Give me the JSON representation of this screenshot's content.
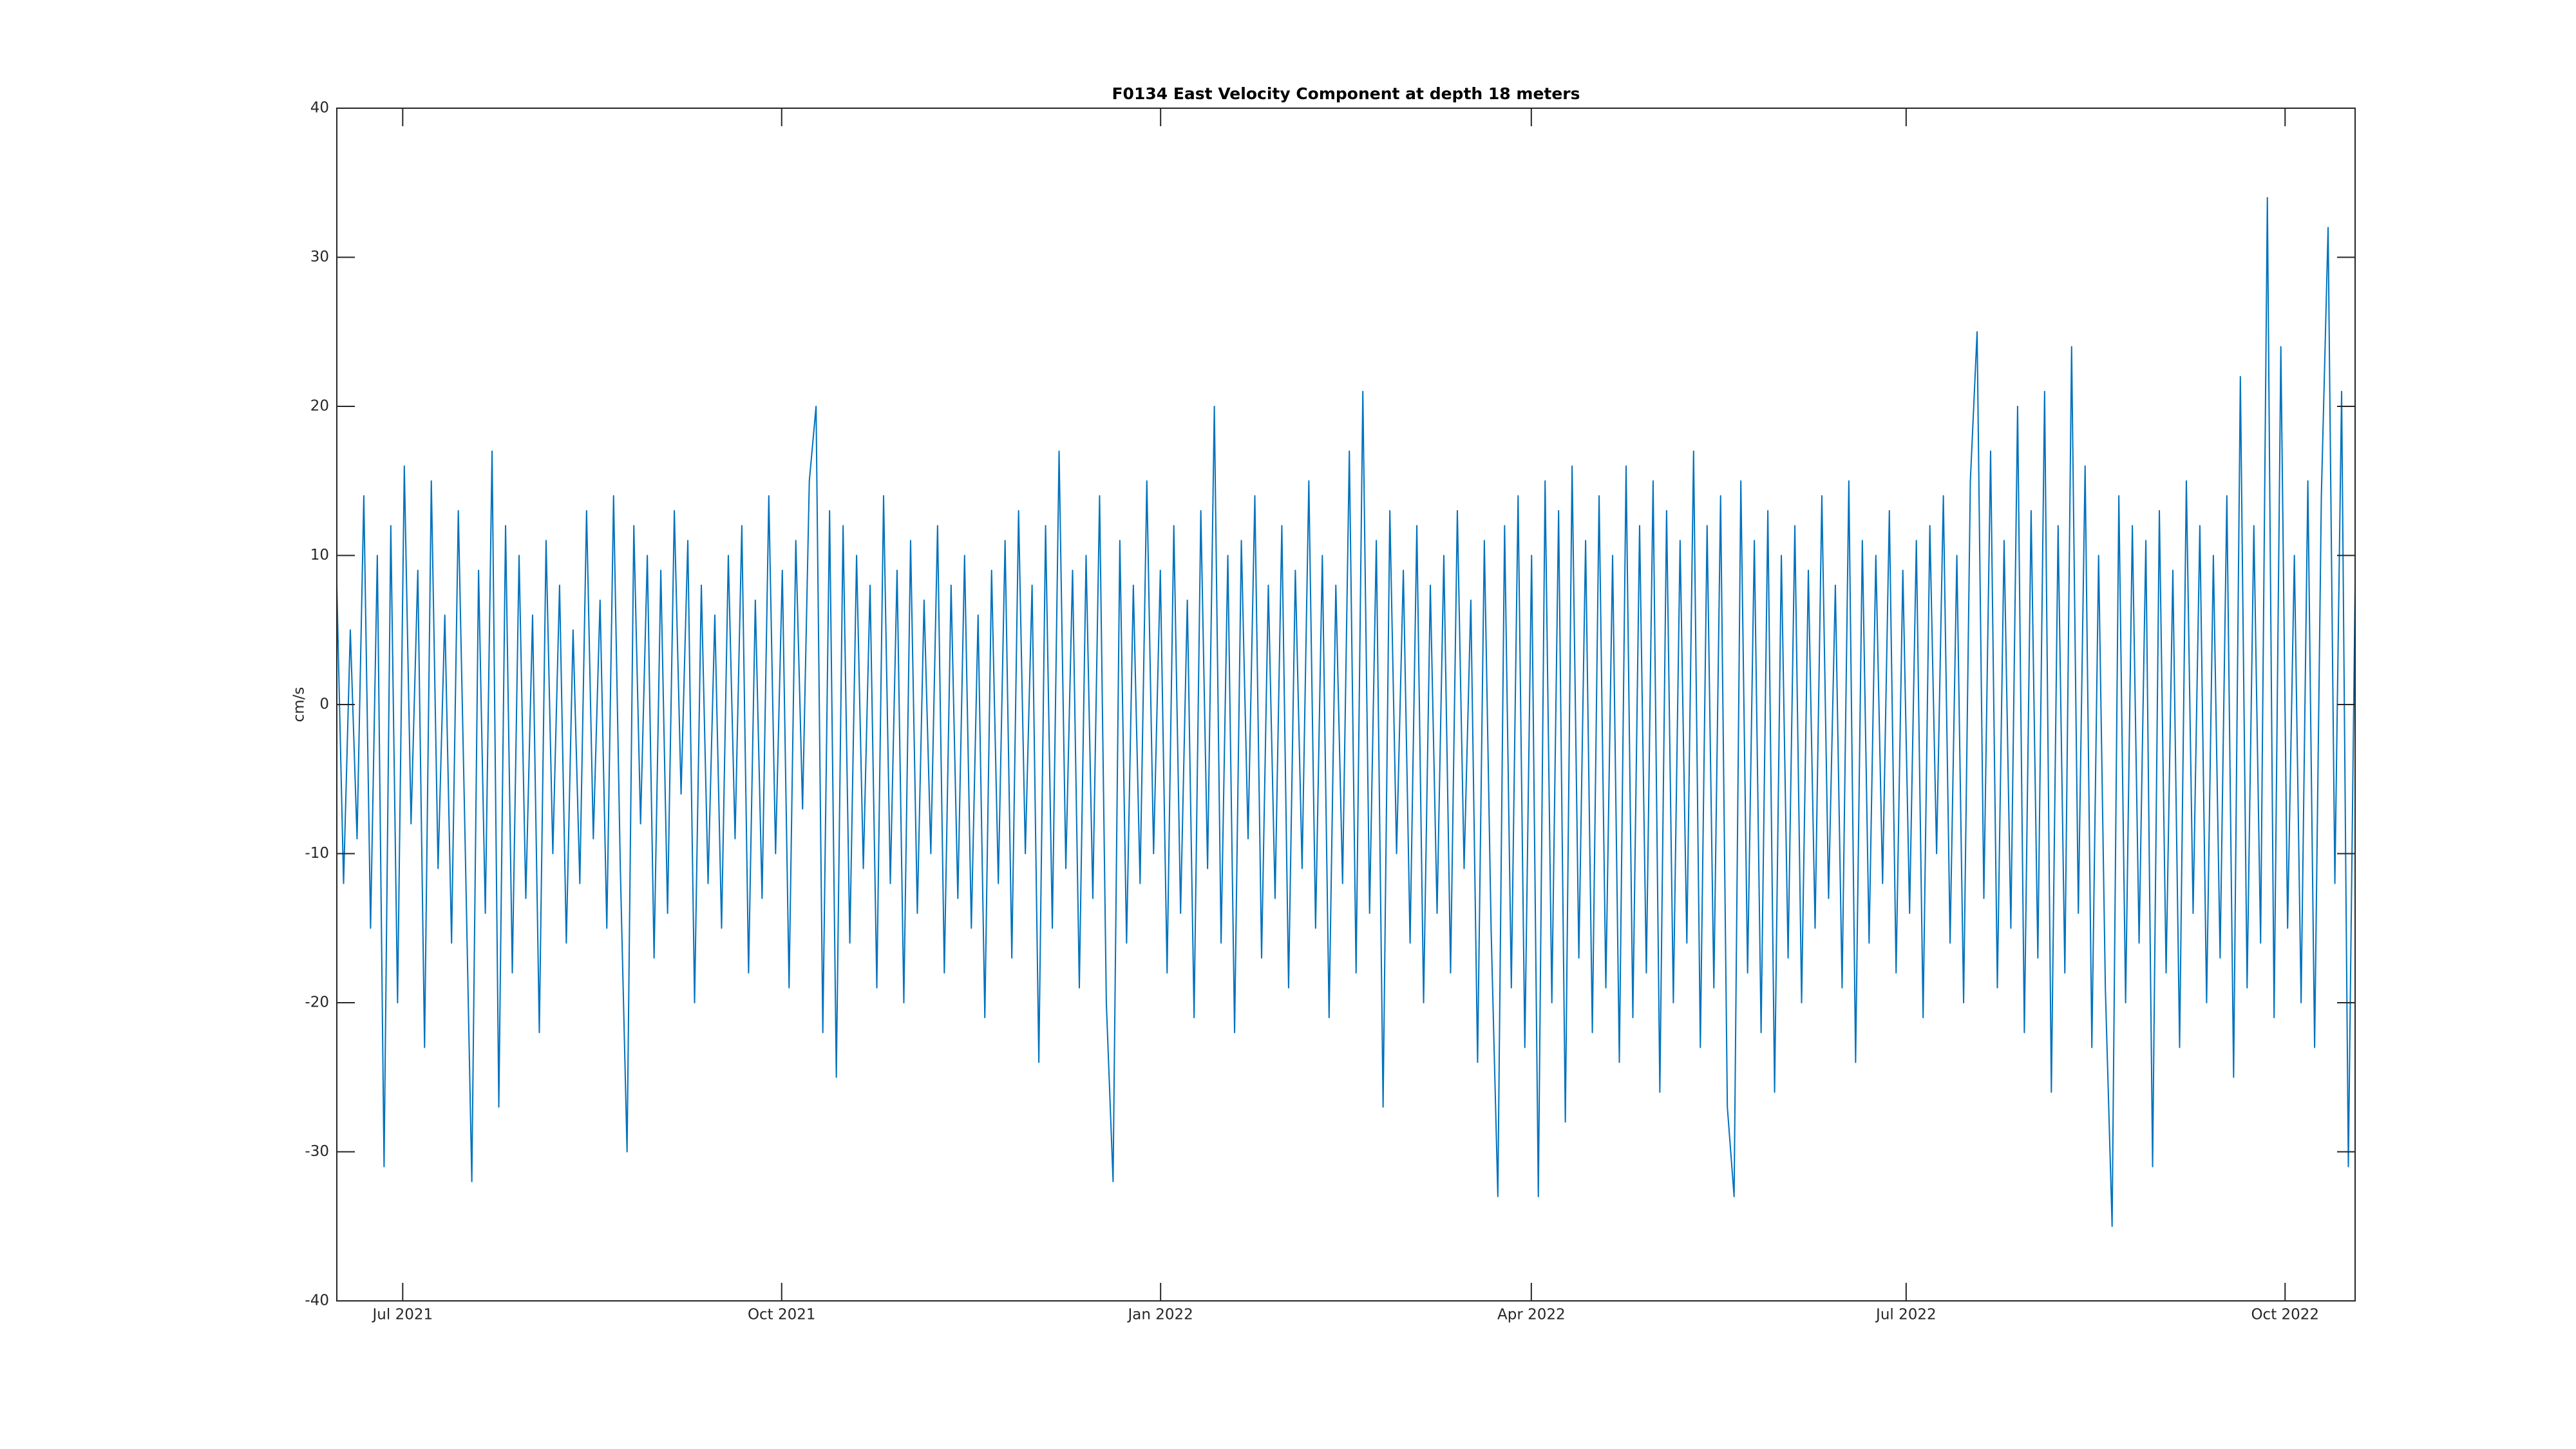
{
  "chart_data": {
    "type": "line",
    "title": "F0134 East Velocity Component at depth 18 meters",
    "y_label": "cm/s",
    "color": "#0072bd",
    "xlim": [
      "2021-06-15",
      "2022-10-18"
    ],
    "xticks": [
      {
        "value": "2021-07-01",
        "label": "Jul 2021"
      },
      {
        "value": "2021-10-01",
        "label": "Oct 2021"
      },
      {
        "value": "2022-01-01",
        "label": "Jan 2022"
      },
      {
        "value": "2022-04-01",
        "label": "Apr 2022"
      },
      {
        "value": "2022-07-01",
        "label": "Jul 2022"
      },
      {
        "value": "2022-10-01",
        "label": "Oct 2022"
      }
    ],
    "ylim": [
      -40,
      40
    ],
    "yticks": [
      -40,
      -30,
      -20,
      -10,
      0,
      10,
      20,
      30,
      40
    ],
    "grid": false,
    "values": [
      8,
      -12,
      5,
      -9,
      14,
      -15,
      10,
      -31,
      12,
      -20,
      16,
      -8,
      9,
      -23,
      15,
      -11,
      6,
      -16,
      13,
      -9,
      -32,
      9,
      -14,
      17,
      -27,
      12,
      -18,
      10,
      -13,
      6,
      -22,
      11,
      -10,
      8,
      -16,
      5,
      -12,
      13,
      -9,
      7,
      -15,
      14,
      -11,
      -30,
      12,
      -8,
      10,
      -17,
      9,
      -14,
      13,
      -6,
      11,
      -20,
      8,
      -12,
      6,
      -15,
      10,
      -9,
      12,
      -18,
      7,
      -13,
      14,
      -10,
      9,
      -19,
      11,
      -7,
      15,
      20,
      -22,
      13,
      -25,
      12,
      -16,
      10,
      -11,
      8,
      -19,
      14,
      -12,
      9,
      -20,
      11,
      -14,
      7,
      -10,
      12,
      -18,
      8,
      -13,
      10,
      -15,
      6,
      -21,
      9,
      -12,
      11,
      -17,
      13,
      -10,
      8,
      -24,
      12,
      -15,
      17,
      -11,
      9,
      -19,
      10,
      -13,
      14,
      -20,
      -32,
      11,
      -16,
      8,
      -12,
      15,
      -10,
      9,
      -18,
      12,
      -14,
      7,
      -21,
      13,
      -11,
      20,
      -16,
      10,
      -22,
      11,
      -9,
      14,
      -17,
      8,
      -13,
      12,
      -19,
      9,
      -11,
      15,
      -15,
      10,
      -21,
      8,
      -12,
      17,
      -18,
      21,
      -14,
      11,
      -27,
      13,
      -10,
      9,
      -16,
      12,
      -20,
      8,
      -14,
      10,
      -18,
      13,
      -11,
      7,
      -24,
      11,
      -15,
      -33,
      12,
      -19,
      14,
      -23,
      10,
      -33,
      15,
      -20,
      13,
      -28,
      16,
      -17,
      11,
      -22,
      14,
      -19,
      10,
      -24,
      16,
      -21,
      12,
      -18,
      15,
      -26,
      13,
      -20,
      11,
      -16,
      17,
      -23,
      12,
      -19,
      14,
      -27,
      -33,
      15,
      -18,
      11,
      -22,
      13,
      -26,
      10,
      -17,
      12,
      -20,
      9,
      -15,
      14,
      -13,
      8,
      -19,
      15,
      -24,
      11,
      -16,
      10,
      -12,
      13,
      -18,
      9,
      -14,
      11,
      -21,
      12,
      -10,
      14,
      -16,
      10,
      -20,
      15,
      25,
      -13,
      17,
      -19,
      11,
      -15,
      20,
      -22,
      13,
      -17,
      21,
      -26,
      12,
      -18,
      24,
      -14,
      16,
      -23,
      10,
      -19,
      -35,
      14,
      -20,
      12,
      -16,
      11,
      -31,
      13,
      -18,
      9,
      -23,
      15,
      -14,
      12,
      -20,
      10,
      -17,
      14,
      -25,
      22,
      -19,
      12,
      -16,
      34,
      -21,
      24,
      -15,
      10,
      -20,
      15,
      -23,
      14,
      32,
      -12,
      21,
      -31,
      8
    ]
  }
}
